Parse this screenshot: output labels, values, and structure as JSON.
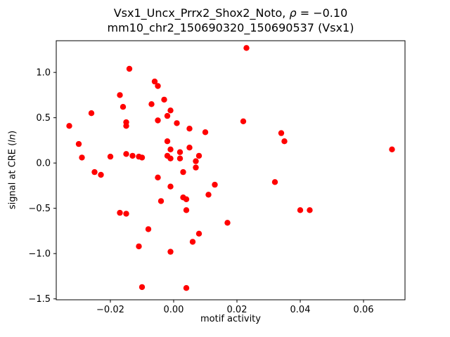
{
  "chart_data": {
    "type": "scatter",
    "title": {
      "line1_prefix": "Vsx1_Uncx_Prrx2_Shox2_Noto, ",
      "line1_rho": "ρ",
      "line1_suffix": " = −0.10",
      "line2": "mm10_chr2_150690320_150690537 (Vsx1)"
    },
    "xlabel": "motif activity",
    "ylabel": {
      "prefix": "signal at CRE (",
      "italic": "ln",
      "suffix": ")"
    },
    "marker_color": "#ff0000",
    "axes": {
      "xlim": [
        -0.0371,
        0.0731
      ],
      "ylim": [
        -1.51,
        1.35
      ],
      "grid": false,
      "xticks": [
        {
          "value": -0.02,
          "label": "−0.02"
        },
        {
          "value": 0.0,
          "label": "0.00"
        },
        {
          "value": 0.02,
          "label": "0.02"
        },
        {
          "value": 0.04,
          "label": "0.04"
        },
        {
          "value": 0.06,
          "label": "0.06"
        }
      ],
      "yticks": [
        {
          "value": -1.5,
          "label": "−1.5"
        },
        {
          "value": -1.0,
          "label": "−1.0"
        },
        {
          "value": -0.5,
          "label": "−0.5"
        },
        {
          "value": 0.0,
          "label": "0.0"
        },
        {
          "value": 0.5,
          "label": "0.5"
        },
        {
          "value": 1.0,
          "label": "1.0"
        }
      ]
    },
    "points": [
      [
        -0.033,
        0.41
      ],
      [
        -0.03,
        0.21
      ],
      [
        -0.029,
        0.06
      ],
      [
        -0.026,
        0.55
      ],
      [
        -0.025,
        -0.1
      ],
      [
        -0.023,
        -0.13
      ],
      [
        -0.02,
        0.07
      ],
      [
        -0.017,
        0.75
      ],
      [
        -0.016,
        0.62
      ],
      [
        -0.015,
        0.45
      ],
      [
        -0.015,
        0.41
      ],
      [
        -0.014,
        1.04
      ],
      [
        -0.015,
        0.1
      ],
      [
        -0.013,
        0.08
      ],
      [
        -0.017,
        -0.55
      ],
      [
        -0.015,
        -0.56
      ],
      [
        -0.011,
        0.07
      ],
      [
        -0.01,
        0.06
      ],
      [
        -0.011,
        -0.92
      ],
      [
        -0.008,
        -0.73
      ],
      [
        -0.01,
        -1.37
      ],
      [
        -0.007,
        0.65
      ],
      [
        -0.006,
        0.9
      ],
      [
        -0.005,
        0.85
      ],
      [
        -0.005,
        0.47
      ],
      [
        -0.005,
        -0.16
      ],
      [
        -0.004,
        -0.42
      ],
      [
        -0.003,
        0.7
      ],
      [
        -0.002,
        0.52
      ],
      [
        -0.002,
        0.24
      ],
      [
        -0.002,
        0.08
      ],
      [
        -0.001,
        0.05
      ],
      [
        -0.001,
        0.58
      ],
      [
        -0.001,
        0.15
      ],
      [
        -0.001,
        -0.26
      ],
      [
        -0.001,
        -0.98
      ],
      [
        0.001,
        0.44
      ],
      [
        0.002,
        0.12
      ],
      [
        0.002,
        0.05
      ],
      [
        0.003,
        -0.1
      ],
      [
        0.003,
        -0.38
      ],
      [
        0.004,
        -0.4
      ],
      [
        0.004,
        -0.52
      ],
      [
        0.004,
        -1.38
      ],
      [
        0.005,
        0.38
      ],
      [
        0.005,
        0.17
      ],
      [
        0.006,
        -0.87
      ],
      [
        0.007,
        0.02
      ],
      [
        0.007,
        -0.05
      ],
      [
        0.008,
        0.08
      ],
      [
        0.008,
        -0.78
      ],
      [
        0.01,
        0.34
      ],
      [
        0.011,
        -0.35
      ],
      [
        0.013,
        -0.24
      ],
      [
        0.017,
        -0.66
      ],
      [
        0.023,
        1.27
      ],
      [
        0.022,
        0.46
      ],
      [
        0.032,
        -0.21
      ],
      [
        0.034,
        0.33
      ],
      [
        0.035,
        0.24
      ],
      [
        0.04,
        -0.52
      ],
      [
        0.043,
        -0.52
      ],
      [
        0.069,
        0.15
      ]
    ]
  }
}
